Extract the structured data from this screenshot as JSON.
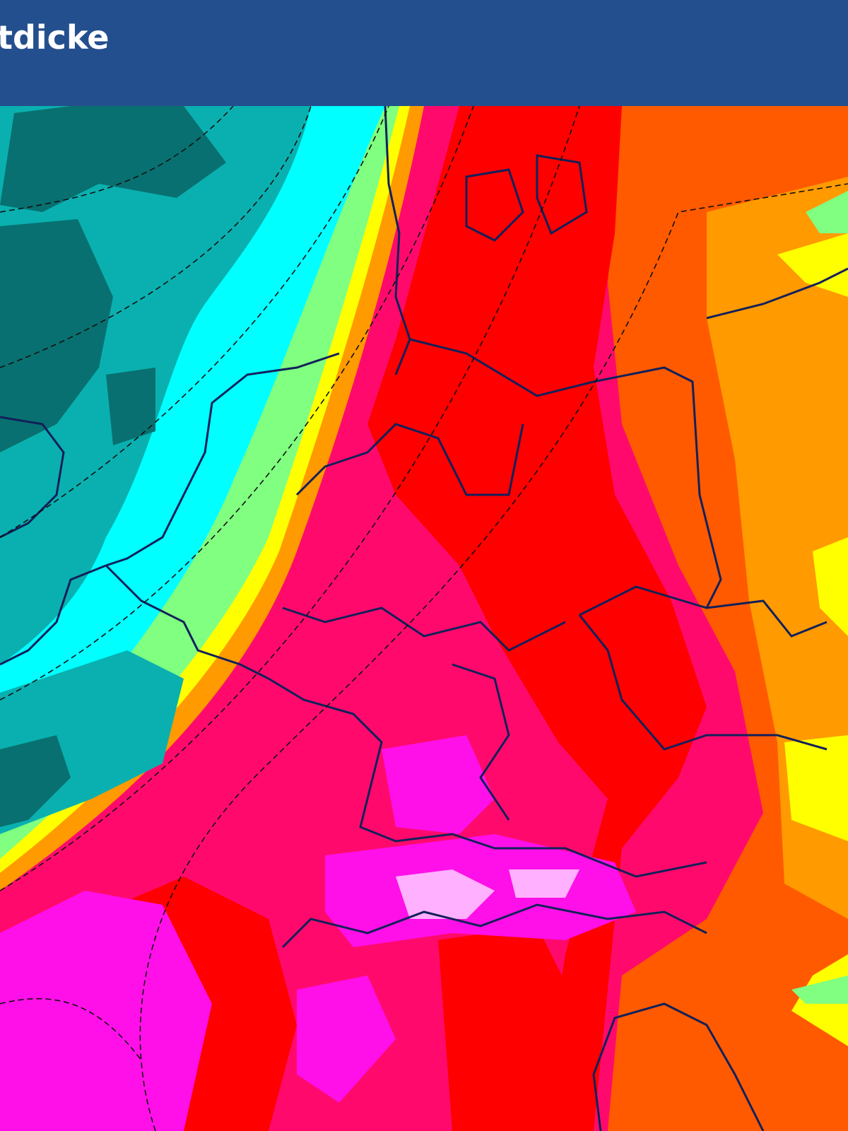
{
  "header": {
    "title": "tdicke"
  }
}
